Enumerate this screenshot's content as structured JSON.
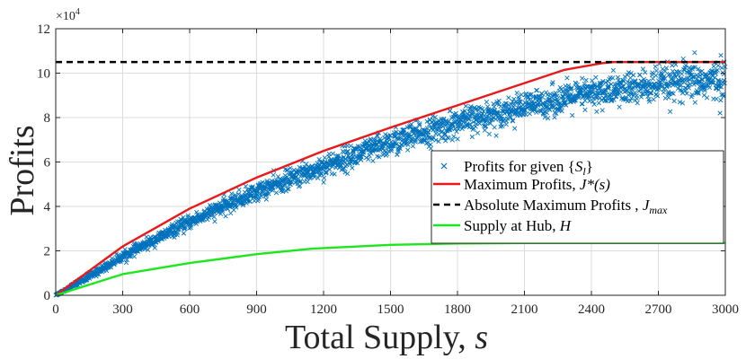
{
  "chart_data": {
    "type": "scatter",
    "xlabel": "Total Supply, s",
    "xlabel_main": "Total Supply, ",
    "xlabel_var": "s",
    "ylabel": "Profits",
    "y_exponent_label": "×10",
    "y_exponent_power": "4",
    "xlim": [
      0,
      3000
    ],
    "ylim": [
      0,
      12
    ],
    "x_ticks": [
      0,
      300,
      600,
      900,
      1200,
      1500,
      1800,
      2100,
      2400,
      2700,
      3000
    ],
    "y_ticks": [
      0,
      2,
      4,
      6,
      8,
      10,
      12
    ],
    "y_unit_multiplier": 10000,
    "grid": true,
    "legend_position": "center-right",
    "series": [
      {
        "name": "Profits for given {S_l}",
        "legend_label": "Profits for given {",
        "legend_label_var": "S",
        "legend_label_sub": "l",
        "legend_label_end": "}",
        "kind": "scatter",
        "marker": "x",
        "color": "#0072BD",
        "trend_x": [
          0,
          150,
          300,
          600,
          900,
          1200,
          1500,
          1800,
          2100,
          2400,
          2700,
          3000
        ],
        "trend_y": [
          0,
          0.85,
          1.75,
          3.3,
          4.65,
          5.8,
          6.85,
          7.75,
          8.5,
          9.1,
          9.45,
          9.7
        ],
        "spread": [
          0,
          0.08,
          0.1,
          0.15,
          0.2,
          0.25,
          0.3,
          0.3,
          0.3,
          0.35,
          0.4,
          0.45
        ]
      },
      {
        "name": "Maximum Profits, J*(s)",
        "legend_label": "Maximum Profits, ",
        "legend_label_var": "J*(s)",
        "kind": "line",
        "color": "#e8191b",
        "x": [
          0,
          300,
          600,
          900,
          1200,
          1500,
          1800,
          2100,
          2280,
          2450,
          2500,
          3000
        ],
        "y": [
          0,
          2.2,
          3.9,
          5.3,
          6.5,
          7.55,
          8.55,
          9.55,
          10.15,
          10.45,
          10.5,
          10.5
        ]
      },
      {
        "name": "Absolute Maximum Profits , J_max",
        "legend_label": "Absolute Maximum Profits , ",
        "legend_label_var": "J",
        "legend_label_sub": "max",
        "kind": "dashed",
        "color": "#000000",
        "x": [
          0,
          3000
        ],
        "y": [
          10.5,
          10.5
        ]
      },
      {
        "name": "Supply at Hub, H",
        "legend_label": "Supply at Hub, ",
        "legend_label_var": "H",
        "kind": "line",
        "color": "#1ee61e",
        "x": [
          0,
          300,
          600,
          900,
          1150,
          1500,
          1800,
          2100,
          2400,
          2700,
          3000
        ],
        "y": [
          0,
          0.95,
          1.45,
          1.85,
          2.1,
          2.27,
          2.33,
          2.35,
          2.35,
          2.35,
          2.35
        ]
      }
    ]
  }
}
